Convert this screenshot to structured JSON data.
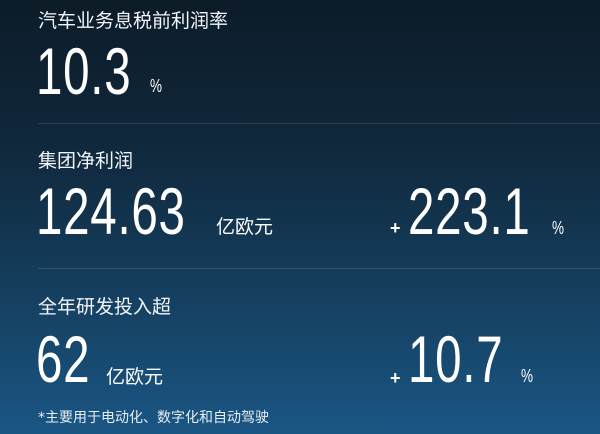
{
  "metrics": [
    {
      "title": "汽车业务息税前利润率",
      "value": "10.3",
      "unit": "%"
    },
    {
      "title": "集团净利润",
      "value": "124.63",
      "unit": "亿欧元",
      "change_sign": "+",
      "change": "223.1",
      "change_unit": "%"
    },
    {
      "title": "全年研发投入超",
      "value": "62",
      "unit": "亿欧元",
      "change_sign": "+",
      "change": "10.7",
      "change_unit": "%"
    }
  ],
  "footnote": "*主要用于电动化、数字化和自动驾驶",
  "colors": {
    "bg_top": "#0c1b28",
    "bg_bottom": "#1a5684",
    "text": "#ffffff"
  }
}
